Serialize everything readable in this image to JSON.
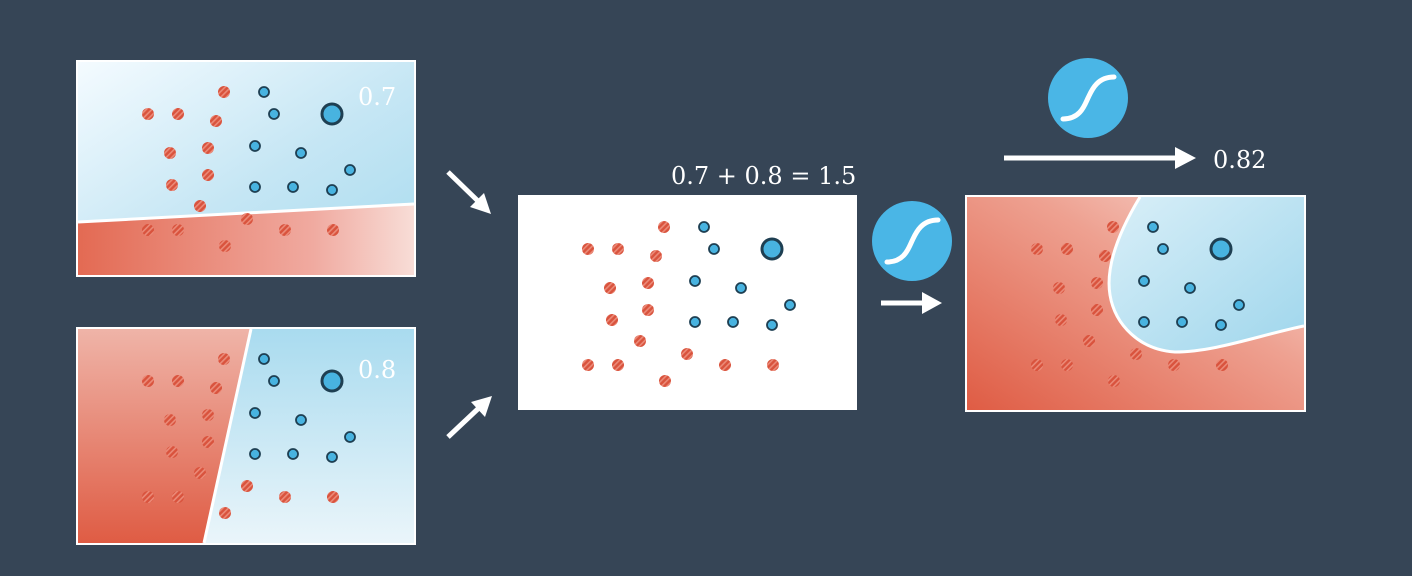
{
  "diagram": {
    "panel_top": {
      "score": "0.7"
    },
    "panel_bottom": {
      "score": "0.8"
    },
    "sum_panel": {
      "equation": "0.7 + 0.8 = 1.5"
    },
    "result": {
      "value": "0.82"
    },
    "icons": {
      "sigmoid": "sigmoid-curve-icon",
      "arrow": "right-arrow-icon"
    },
    "colors": {
      "background": "#364556",
      "red_point": "#d9533d",
      "blue_point": "#48b3e0",
      "red_region": "#e06a52",
      "blue_region": "#b9e0f0",
      "sigmoid_badge": "#4ab6e6"
    }
  }
}
